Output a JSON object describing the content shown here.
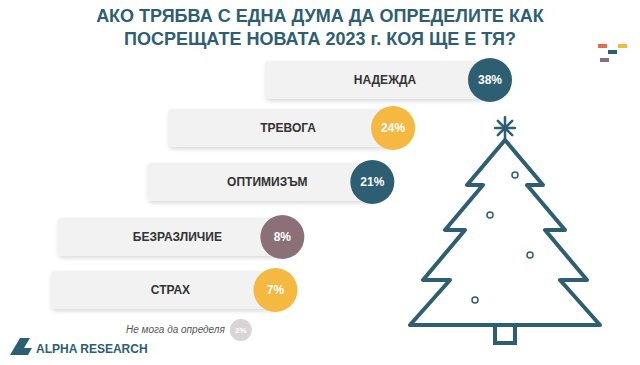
{
  "chart_data": {
    "type": "bar",
    "orientation": "horizontal",
    "title": "АКО ТРЯБВА С ЕДНА ДУМА ДА ОПРЕДЕЛИТЕ КАК ПОСРЕЩАТЕ НОВАТА 2023 г. КОЯ ЩЕ Е ТЯ?",
    "categories": [
      "НАДЕЖДА",
      "ТРЕВОГА",
      "ОПТИМИЗЪМ",
      "БЕЗРАЗЛИЧИЕ",
      "СТРАХ",
      "Не мога да определя"
    ],
    "values": [
      38,
      24,
      21,
      8,
      7,
      2
    ],
    "value_labels": [
      "38%",
      "24%",
      "21%",
      "8%",
      "7%",
      "2%"
    ],
    "colors": [
      "#2d5e71",
      "#f5b942",
      "#2d5e71",
      "#8c7077",
      "#f5b942",
      "#d9d4d5"
    ],
    "data_labels": true,
    "tick_labels": false,
    "source": "ALPHA RESEARCH"
  }
}
